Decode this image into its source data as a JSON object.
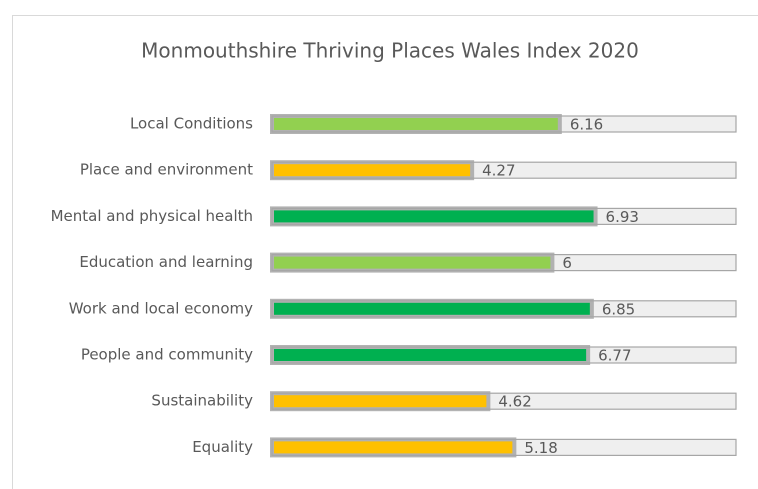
{
  "chart_data": {
    "type": "bar",
    "orientation": "horizontal",
    "title": "Monmouthshire Thriving Places Wales Index 2020",
    "categories": [
      "Local Conditions",
      "Place and environment",
      "Mental and physical health",
      "Education and learning",
      "Work and local economy",
      "People and community",
      "Sustainability",
      "Equality"
    ],
    "values": [
      6.16,
      4.27,
      6.93,
      6,
      6.85,
      6.77,
      4.62,
      5.18
    ],
    "colors": [
      "#92d050",
      "#ffc000",
      "#00b050",
      "#92d050",
      "#00b050",
      "#00b050",
      "#ffc000",
      "#ffc000"
    ],
    "xlim": [
      0,
      10
    ]
  }
}
